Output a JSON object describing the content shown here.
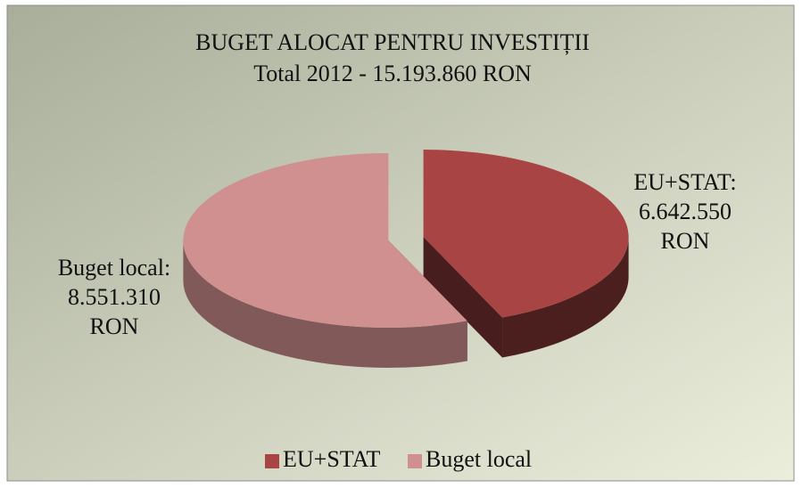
{
  "chart_data": {
    "type": "pie",
    "title": "BUGET ALOCAT PENTRU INVESTIȚII",
    "subtitle": "Total 2012 - 15.193.860 RON",
    "categories": [
      "EU+STAT",
      "Buget local"
    ],
    "values": [
      6642550,
      8551310
    ],
    "value_labels": [
      "EU+STAT:\n6.642.550\nRON",
      "Buget local:\n8.551.310\nRON"
    ],
    "colors": [
      "#a84444",
      "#d09090"
    ],
    "legend": "bottom"
  }
}
